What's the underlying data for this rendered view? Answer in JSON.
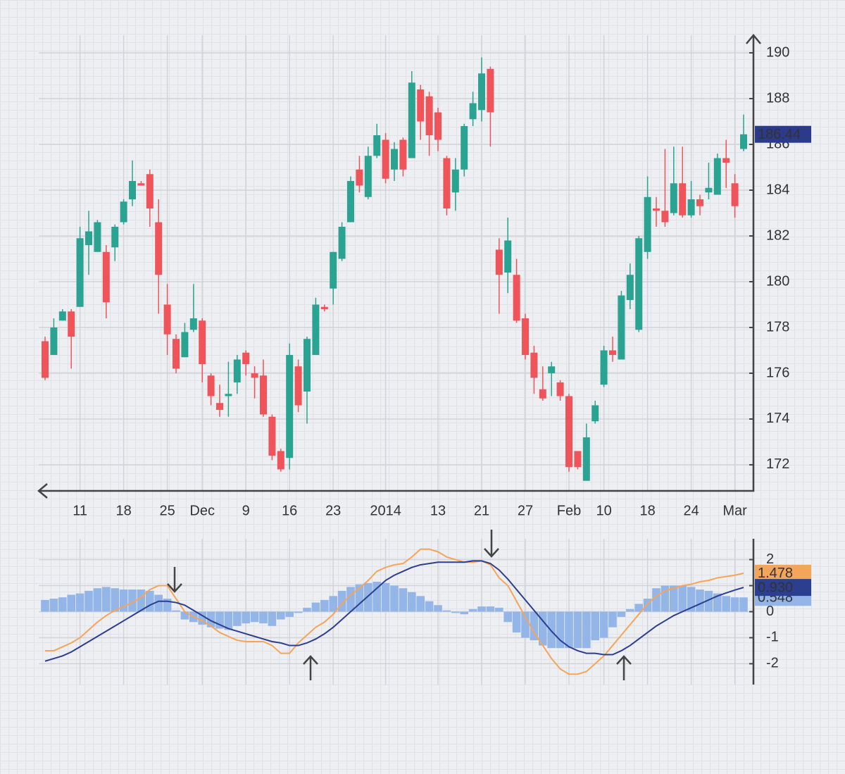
{
  "chart_data": [
    {
      "type": "candlestick",
      "categories": [
        null,
        null,
        null,
        null,
        "11",
        null,
        null,
        null,
        null,
        "18",
        null,
        null,
        null,
        null,
        "25",
        null,
        null,
        null,
        "Dec",
        null,
        null,
        null,
        null,
        "9",
        null,
        null,
        null,
        null,
        "16",
        null,
        null,
        null,
        null,
        "23",
        null,
        null,
        null,
        null,
        null,
        "2014",
        null,
        null,
        null,
        null,
        null,
        "13",
        null,
        null,
        null,
        null,
        "21",
        null,
        null,
        null,
        null,
        "27",
        null,
        null,
        null,
        null,
        "Feb",
        null,
        null,
        null,
        "10",
        null,
        null,
        null,
        null,
        "18",
        null,
        null,
        null,
        null,
        "24",
        null,
        null,
        null,
        null,
        "Mar",
        null
      ],
      "open": [
        177.4,
        176.8,
        178.3,
        178.7,
        178.9,
        181.6,
        181.3,
        181.3,
        181.5,
        182.6,
        183.6,
        184.3,
        184.7,
        182.6,
        179.0,
        177.5,
        176.7,
        177.9,
        178.3,
        175.9,
        174.7,
        175.0,
        175.6,
        176.9,
        176.0,
        175.9,
        174.1,
        172.6,
        172.3,
        176.3,
        175.2,
        176.8,
        178.9,
        179.7,
        181.0,
        182.6,
        184.9,
        183.7,
        185.5,
        186.2,
        184.9,
        186.2,
        185.4,
        188.4,
        188.1,
        187.4,
        185.4,
        183.9,
        184.9,
        187.1,
        187.5,
        189.3,
        181.4,
        180.4,
        180.3,
        178.4,
        176.9,
        175.3,
        176.0,
        175.6,
        175.0,
        172.6,
        171.3,
        173.9,
        175.5,
        177.0,
        176.6,
        179.2,
        177.9,
        181.3,
        183.2,
        183.1,
        183.0,
        184.3,
        182.9,
        183.6,
        183.9,
        183.8,
        185.4,
        184.3,
        185.8
      ],
      "high": [
        177.6,
        178.4,
        178.8,
        178.8,
        182.4,
        183.1,
        182.7,
        181.6,
        182.5,
        183.6,
        185.3,
        184.4,
        184.9,
        183.6,
        179.9,
        177.7,
        178.2,
        179.9,
        178.4,
        176.0,
        175.5,
        176.5,
        176.8,
        177.0,
        176.3,
        176.6,
        174.2,
        172.7,
        177.3,
        176.6,
        177.6,
        179.3,
        179.0,
        181.3,
        182.6,
        184.6,
        185.5,
        185.9,
        186.9,
        186.5,
        186.1,
        186.3,
        189.2,
        188.6,
        188.3,
        187.6,
        185.5,
        185.4,
        186.9,
        188.3,
        189.8,
        189.4,
        181.9,
        182.8,
        181.0,
        178.6,
        177.2,
        176.3,
        176.5,
        175.7,
        175.1,
        172.6,
        173.8,
        174.8,
        177.2,
        177.6,
        179.6,
        180.8,
        182.0,
        184.6,
        183.7,
        185.8,
        185.9,
        185.9,
        184.4,
        183.8,
        185.2,
        185.6,
        186.2,
        184.7,
        187.3
      ],
      "low": [
        175.7,
        176.8,
        178.3,
        176.2,
        178.9,
        180.3,
        181.3,
        178.4,
        180.9,
        182.5,
        183.3,
        184.2,
        182.4,
        178.6,
        176.8,
        176.0,
        176.7,
        177.8,
        175.6,
        174.6,
        174.1,
        174.1,
        175.1,
        175.9,
        174.9,
        174.1,
        172.2,
        171.7,
        171.8,
        174.3,
        173.8,
        176.8,
        178.7,
        179.0,
        180.9,
        182.6,
        183.9,
        183.6,
        185.4,
        184.3,
        184.4,
        184.6,
        185.4,
        186.2,
        185.5,
        185.7,
        182.9,
        183.1,
        184.6,
        186.8,
        187.0,
        185.9,
        178.6,
        179.5,
        178.2,
        176.6,
        175.1,
        174.8,
        175.0,
        174.8,
        171.7,
        171.8,
        171.3,
        173.8,
        175.4,
        176.5,
        176.6,
        178.8,
        177.8,
        181.0,
        182.4,
        182.4,
        182.9,
        182.8,
        182.8,
        182.9,
        183.6,
        183.8,
        184.1,
        182.8,
        185.7
      ],
      "close": [
        175.8,
        178.0,
        178.7,
        177.6,
        181.9,
        182.2,
        182.6,
        179.1,
        182.4,
        183.5,
        184.4,
        184.2,
        183.2,
        180.3,
        177.7,
        176.2,
        177.8,
        178.4,
        176.4,
        175.0,
        174.4,
        175.1,
        176.6,
        176.4,
        175.8,
        174.2,
        172.4,
        171.8,
        176.8,
        174.6,
        177.5,
        179.0,
        178.8,
        181.3,
        182.4,
        184.4,
        184.2,
        185.5,
        186.4,
        184.5,
        185.8,
        184.9,
        188.7,
        187.0,
        186.4,
        186.2,
        183.2,
        184.9,
        186.8,
        187.8,
        189.1,
        187.4,
        180.3,
        181.8,
        178.3,
        176.8,
        175.8,
        174.9,
        176.3,
        175.0,
        171.9,
        171.9,
        173.2,
        174.6,
        177.0,
        176.8,
        179.4,
        180.3,
        181.9,
        183.7,
        183.1,
        182.6,
        184.3,
        182.9,
        183.6,
        183.3,
        184.1,
        185.4,
        185.2,
        183.3,
        186.44
      ],
      "up_color": "#2ba392",
      "down_color": "#ee5459",
      "price_label_color": "#2c3a8c",
      "ylim": [
        170.86,
        190.77
      ],
      "yticks": [
        172,
        174,
        176,
        178,
        180,
        182,
        184,
        186,
        188,
        190
      ],
      "grid": true
    },
    {
      "type": "macd",
      "ylim": [
        -2.8,
        2.8
      ],
      "yticks": [
        -2,
        -1,
        0,
        1,
        2
      ],
      "grid": true,
      "series": [
        {
          "type": "bar",
          "color": "#93b5e8",
          "values": [
            0.45,
            0.5,
            0.55,
            0.65,
            0.7,
            0.8,
            0.9,
            0.95,
            0.9,
            0.85,
            0.85,
            0.85,
            0.8,
            0.65,
            0.5,
            0.05,
            -0.3,
            -0.4,
            -0.5,
            -0.6,
            -0.65,
            -0.7,
            -0.55,
            -0.45,
            -0.4,
            -0.45,
            -0.55,
            -0.3,
            -0.2,
            -0.05,
            0.15,
            0.35,
            0.45,
            0.6,
            0.8,
            0.95,
            1.05,
            1.1,
            1.15,
            1.1,
            1.0,
            0.9,
            0.75,
            0.6,
            0.4,
            0.25,
            0.05,
            -0.05,
            -0.1,
            0.1,
            0.2,
            0.2,
            0.15,
            -0.4,
            -0.8,
            -1.0,
            -1.1,
            -1.3,
            -1.4,
            -1.4,
            -1.4,
            -1.4,
            -1.4,
            -1.1,
            -1.0,
            -0.6,
            -0.2,
            0.1,
            0.3,
            0.5,
            0.9,
            1.0,
            1.0,
            1.0,
            0.95,
            0.85,
            0.8,
            0.7,
            0.6,
            0.55,
            0.548
          ],
          "value_labels": [
            null,
            null,
            null,
            null,
            null,
            null,
            null,
            null,
            null,
            null,
            null,
            null,
            null,
            null,
            null,
            null,
            null,
            null,
            null,
            null,
            null,
            null,
            null,
            null,
            null,
            null,
            null,
            null,
            null,
            null,
            null,
            null,
            null,
            null,
            null,
            null,
            null,
            null,
            null,
            null,
            null,
            null,
            null,
            null,
            null,
            null,
            null,
            null,
            null,
            null,
            null,
            null,
            null,
            null,
            null,
            null,
            null,
            null,
            null,
            null,
            null,
            null,
            null,
            null,
            null,
            null,
            null,
            null,
            null,
            null,
            null,
            null,
            null,
            null,
            null,
            null,
            null,
            null,
            null,
            null,
            "0.548"
          ]
        },
        {
          "type": "line",
          "color": "#f5a55a",
          "values": [
            -1.5,
            -1.5,
            -1.35,
            -1.2,
            -1.0,
            -0.7,
            -0.4,
            -0.15,
            0.05,
            0.2,
            0.35,
            0.55,
            0.85,
            1.0,
            1.0,
            0.5,
            0.0,
            -0.2,
            -0.35,
            -0.55,
            -0.8,
            -0.95,
            -1.1,
            -1.15,
            -1.15,
            -1.15,
            -1.3,
            -1.6,
            -1.6,
            -1.2,
            -0.9,
            -0.6,
            -0.4,
            -0.1,
            0.3,
            0.65,
            0.9,
            1.2,
            1.55,
            1.7,
            1.8,
            1.85,
            2.1,
            2.4,
            2.4,
            2.3,
            2.1,
            2.0,
            1.9,
            1.9,
            1.95,
            1.8,
            1.3,
            1.0,
            0.4,
            -0.2,
            -0.8,
            -1.3,
            -1.8,
            -2.2,
            -2.4,
            -2.4,
            -2.3,
            -2.0,
            -1.7,
            -1.3,
            -0.9,
            -0.5,
            -0.1,
            0.3,
            0.6,
            0.8,
            0.9,
            1.0,
            1.05,
            1.15,
            1.2,
            1.3,
            1.35,
            1.4,
            1.478
          ]
        },
        {
          "type": "line",
          "color": "#2c3e8f",
          "values": [
            -1.9,
            -1.8,
            -1.7,
            -1.55,
            -1.35,
            -1.15,
            -0.95,
            -0.75,
            -0.55,
            -0.35,
            -0.15,
            0.05,
            0.25,
            0.4,
            0.4,
            0.35,
            0.25,
            0.05,
            -0.15,
            -0.35,
            -0.5,
            -0.65,
            -0.75,
            -0.85,
            -0.95,
            -1.05,
            -1.15,
            -1.2,
            -1.3,
            -1.3,
            -1.2,
            -1.05,
            -0.85,
            -0.6,
            -0.3,
            0.0,
            0.3,
            0.6,
            0.9,
            1.2,
            1.4,
            1.55,
            1.7,
            1.8,
            1.85,
            1.9,
            1.9,
            1.9,
            1.9,
            1.95,
            1.95,
            1.85,
            1.6,
            1.25,
            0.85,
            0.45,
            0.05,
            -0.35,
            -0.75,
            -1.1,
            -1.35,
            -1.5,
            -1.6,
            -1.6,
            -1.65,
            -1.65,
            -1.5,
            -1.3,
            -1.05,
            -0.8,
            -0.55,
            -0.35,
            -0.15,
            0.0,
            0.15,
            0.3,
            0.45,
            0.6,
            0.72,
            0.83,
            0.93
          ],
          "value_labels": [
            null,
            null,
            null,
            null,
            null,
            null,
            null,
            null,
            null,
            null,
            null,
            null,
            null,
            null,
            null,
            null,
            null,
            null,
            null,
            null,
            null,
            null,
            null,
            null,
            null,
            null,
            null,
            null,
            null,
            null,
            null,
            null,
            null,
            null,
            null,
            null,
            null,
            null,
            null,
            null,
            null,
            null,
            null,
            null,
            null,
            null,
            null,
            null,
            null,
            null,
            null,
            null,
            null,
            null,
            null,
            null,
            null,
            null,
            null,
            null,
            null,
            null,
            null,
            null,
            null,
            null,
            null,
            null,
            null,
            null,
            null,
            null,
            null,
            null,
            null,
            null,
            null,
            null,
            null,
            null,
            "0.930"
          ]
        }
      ]
    }
  ]
}
